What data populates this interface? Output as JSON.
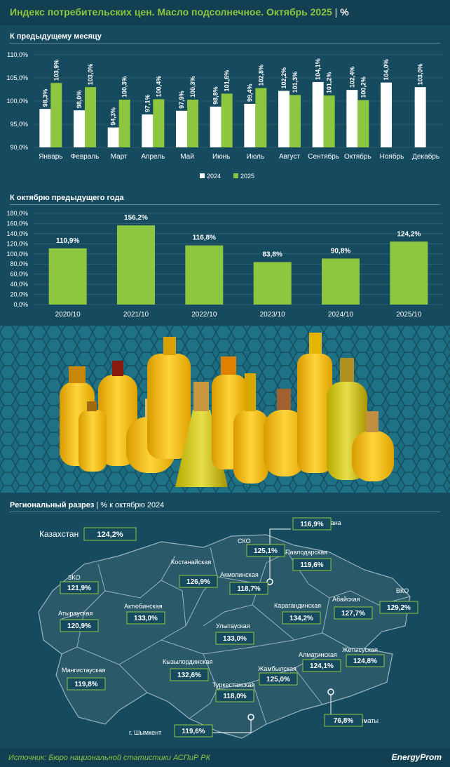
{
  "header": {
    "title": "Индекс потребительских цен. Масло подсолнечное. Октябрь 2025",
    "separator": "|",
    "unit": "%"
  },
  "chart_data": [
    {
      "type": "bar",
      "title": "К предыдущему месяцу",
      "categories": [
        "Январь",
        "Февраль",
        "Март",
        "Апрель",
        "Май",
        "Июнь",
        "Июль",
        "Август",
        "Сентябрь",
        "Октябрь",
        "Ноябрь",
        "Декабрь"
      ],
      "series": [
        {
          "name": "2024",
          "color": "#ffffff",
          "values": [
            98.3,
            98.0,
            94.3,
            97.1,
            97.9,
            98.8,
            99.4,
            102.2,
            104.1,
            102.4,
            104.0,
            103.0
          ]
        },
        {
          "name": "2025",
          "color": "#8dc63f",
          "values": [
            103.9,
            103.0,
            100.3,
            100.4,
            100.3,
            101.6,
            102.8,
            101.3,
            101.2,
            100.2,
            null,
            null
          ]
        }
      ],
      "labels": [
        [
          "98,3%",
          "98,0%",
          "94,3%",
          "97,1%",
          "97,9%",
          "98,8%",
          "99,4%",
          "102,2%",
          "104,1%",
          "102,4%",
          "104,0%",
          "103,0%"
        ],
        [
          "103,9%",
          "103,0%",
          "100,3%",
          "100,4%",
          "100,3%",
          "101,6%",
          "102,8%",
          "101,3%",
          "101,2%",
          "100,2%",
          "",
          ""
        ]
      ],
      "yticks": [
        "110,0%",
        "105,0%",
        "100,0%",
        "95,0%",
        "90,0%"
      ],
      "ylim": [
        90,
        110
      ],
      "legend": "bottom-center"
    },
    {
      "type": "bar",
      "title": "К октябрю предыдущего года",
      "categories": [
        "2020/10",
        "2021/10",
        "2022/10",
        "2023/10",
        "2024/10",
        "2025/10"
      ],
      "values": [
        110.9,
        156.2,
        116.8,
        83.8,
        90.8,
        124.2
      ],
      "labels": [
        "110,9%",
        "156,2%",
        "116,8%",
        "83,8%",
        "90,8%",
        "124,2%"
      ],
      "yticks": [
        "180,0%",
        "160,0%",
        "140,0%",
        "120,0%",
        "100,0%",
        "80,0%",
        "60,0%",
        "40,0%",
        "20,0%",
        "0,0%"
      ],
      "ylim": [
        0,
        180
      ],
      "color": "#8dc63f"
    }
  ],
  "map": {
    "title": "Региональный разрез",
    "separator": "|",
    "subtitle": "% к октябрю 2024",
    "kazakhstan": {
      "name": "Казахстан",
      "value": "124,2%"
    },
    "regions": [
      {
        "name": "СКО",
        "value": "125,1%"
      },
      {
        "name": "г. Астана",
        "value": "116,9%"
      },
      {
        "name": "Павлодарская",
        "value": "119,6%"
      },
      {
        "name": "Костанайская",
        "value": "126,9%"
      },
      {
        "name": "Акмолинская",
        "value": "118,7%"
      },
      {
        "name": "ЗКО",
        "value": "121,9%"
      },
      {
        "name": "ВКО",
        "value": "129,2%"
      },
      {
        "name": "Актюбинская",
        "value": "133,0%"
      },
      {
        "name": "Карагандинская",
        "value": "134,2%"
      },
      {
        "name": "Абайская",
        "value": "127,7%"
      },
      {
        "name": "Атырауская",
        "value": "120,9%"
      },
      {
        "name": "Улытауская",
        "value": "133,0%"
      },
      {
        "name": "Жетысуская",
        "value": "124,8%"
      },
      {
        "name": "Алматинская",
        "value": "124,1%"
      },
      {
        "name": "Мангистауская",
        "value": "119,8%"
      },
      {
        "name": "Кызылординская",
        "value": "132,6%"
      },
      {
        "name": "Жамбылская",
        "value": "125,0%"
      },
      {
        "name": "Туркестанская",
        "value": "118,0%"
      },
      {
        "name": "г. Алматы",
        "value": "76,8%"
      },
      {
        "name": "г. Шымкент",
        "value": "119,6%"
      }
    ]
  },
  "footer": {
    "source": "Источник: Бюро национальной статистики АСПиР РК",
    "logo": "EnergyProm"
  }
}
